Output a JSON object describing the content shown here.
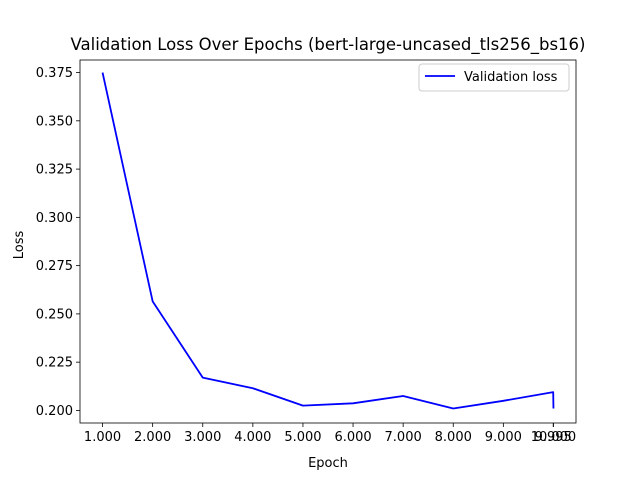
{
  "chart_data": {
    "type": "line",
    "title": "Validation Loss Over Epochs (bert-large-uncased_tls256_bs16)",
    "xlabel": "Epoch",
    "ylabel": "Loss",
    "xlim": [
      0.55,
      10.45
    ],
    "ylim": [
      0.1935,
      0.3815
    ],
    "grid": false,
    "legend_position": "top-right",
    "x_ticks": [
      {
        "value": 1,
        "label": "1.000"
      },
      {
        "value": 2,
        "label": "2.000"
      },
      {
        "value": 3,
        "label": "3.000"
      },
      {
        "value": 4,
        "label": "4.000"
      },
      {
        "value": 5,
        "label": "5.000"
      },
      {
        "value": 6,
        "label": "6.000"
      },
      {
        "value": 7,
        "label": "7.000"
      },
      {
        "value": 8,
        "label": "8.000"
      },
      {
        "value": 9,
        "label": "9.000"
      },
      {
        "value": 9.995,
        "label": "9.995"
      },
      {
        "value": 10,
        "label": "10.000"
      }
    ],
    "y_ticks": [
      {
        "value": 0.2,
        "label": "0.200"
      },
      {
        "value": 0.225,
        "label": "0.225"
      },
      {
        "value": 0.25,
        "label": "0.250"
      },
      {
        "value": 0.275,
        "label": "0.275"
      },
      {
        "value": 0.3,
        "label": "0.300"
      },
      {
        "value": 0.325,
        "label": "0.325"
      },
      {
        "value": 0.35,
        "label": "0.350"
      },
      {
        "value": 0.375,
        "label": "0.375"
      }
    ],
    "series": [
      {
        "name": "Validation loss",
        "color": "#0000ff",
        "x": [
          1,
          2,
          3,
          4,
          5,
          6,
          7,
          8,
          9,
          9.995,
          10
        ],
        "y": [
          0.375,
          0.2565,
          0.217,
          0.2115,
          0.2025,
          0.2037,
          0.2075,
          0.201,
          0.205,
          0.2095,
          0.201
        ]
      }
    ]
  }
}
